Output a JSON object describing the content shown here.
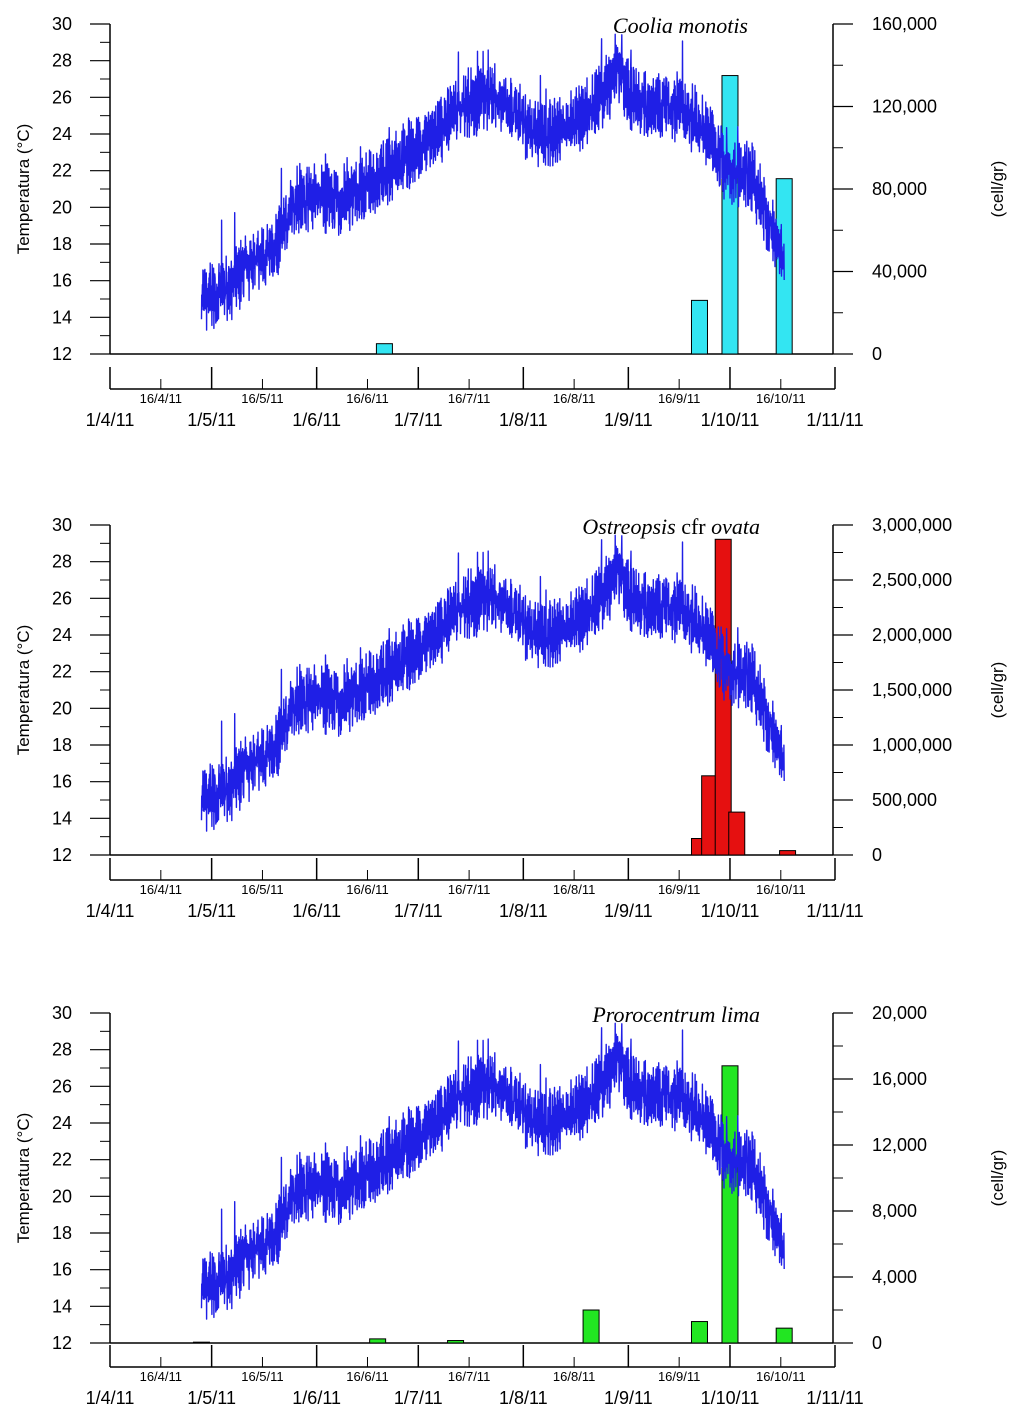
{
  "chart_data": [
    {
      "type": "bar+line",
      "title_parts": [
        {
          "text": "Coolia monotis",
          "italic": true
        }
      ],
      "ylabel_left": "Temperatura (°C)",
      "ylabel_right": "(cell/gr)",
      "left_ylim": [
        12,
        30
      ],
      "left_yticks": [
        "12",
        "14",
        "16",
        "18",
        "20",
        "22",
        "24",
        "26",
        "28",
        "30"
      ],
      "right_ylim": [
        0,
        160000
      ],
      "right_yticks": [
        "0",
        "40,000",
        "80,000",
        "120,000",
        "160,000"
      ],
      "x_major_labels": [
        "1/4/11",
        "1/5/11",
        "1/6/11",
        "1/7/11",
        "1/8/11",
        "1/9/11",
        "1/10/11",
        "1/11/11"
      ],
      "x_minor_labels": [
        "16/4/11",
        "16/5/11",
        "16/6/11",
        "16/7/11",
        "16/8/11",
        "16/9/11",
        "16/10/11"
      ],
      "bar_color": "#33e5f2",
      "line_color": "#1f1fe6",
      "bars": [
        {
          "date": "2011-06-21",
          "value": 5000
        },
        {
          "date": "2011-09-22",
          "value": 26000
        },
        {
          "date": "2011-10-01",
          "value": 135000
        },
        {
          "date": "2011-10-17",
          "value": 85000
        }
      ],
      "temperature_trend": [
        {
          "date": "2011-04-28",
          "value": 15.0
        },
        {
          "date": "2011-05-05",
          "value": 15.5
        },
        {
          "date": "2011-05-12",
          "value": 16.8
        },
        {
          "date": "2011-05-19",
          "value": 17.5
        },
        {
          "date": "2011-05-26",
          "value": 20.5
        },
        {
          "date": "2011-06-01",
          "value": 20.6
        },
        {
          "date": "2011-06-08",
          "value": 20.3
        },
        {
          "date": "2011-06-15",
          "value": 21.0
        },
        {
          "date": "2011-06-22",
          "value": 22.0
        },
        {
          "date": "2011-06-29",
          "value": 23.0
        },
        {
          "date": "2011-07-06",
          "value": 24.0
        },
        {
          "date": "2011-07-13",
          "value": 25.5
        },
        {
          "date": "2011-07-20",
          "value": 26.0
        },
        {
          "date": "2011-07-27",
          "value": 25.8
        },
        {
          "date": "2011-08-03",
          "value": 24.0
        },
        {
          "date": "2011-08-10",
          "value": 24.0
        },
        {
          "date": "2011-08-17",
          "value": 24.8
        },
        {
          "date": "2011-08-24",
          "value": 26.0
        },
        {
          "date": "2011-08-29",
          "value": 27.5
        },
        {
          "date": "2011-09-02",
          "value": 25.8
        },
        {
          "date": "2011-09-09",
          "value": 25.5
        },
        {
          "date": "2011-09-16",
          "value": 25.5
        },
        {
          "date": "2011-09-23",
          "value": 24.5
        },
        {
          "date": "2011-09-30",
          "value": 22.0
        },
        {
          "date": "2011-10-07",
          "value": 21.8
        },
        {
          "date": "2011-10-12",
          "value": 19.5
        },
        {
          "date": "2011-10-17",
          "value": 17.0
        }
      ]
    },
    {
      "type": "bar+line",
      "title_parts": [
        {
          "text": "Ostreopsis",
          "italic": true
        },
        {
          "text": " cfr ",
          "italic": false
        },
        {
          "text": "ovata",
          "italic": true
        }
      ],
      "ylabel_left": "Temperatura (°C)",
      "ylabel_right": "(cell/gr)",
      "left_ylim": [
        12,
        30
      ],
      "left_yticks": [
        "12",
        "14",
        "16",
        "18",
        "20",
        "22",
        "24",
        "26",
        "28",
        "30"
      ],
      "right_ylim": [
        0,
        3000000
      ],
      "right_yticks": [
        "0",
        "500,000",
        "1,000,000",
        "1,500,000",
        "2,000,000",
        "2,500,000",
        "3,000,000"
      ],
      "x_major_labels": [
        "1/4/11",
        "1/5/11",
        "1/6/11",
        "1/7/11",
        "1/8/11",
        "1/9/11",
        "1/10/11",
        "1/11/11"
      ],
      "x_minor_labels": [
        "16/4/11",
        "16/5/11",
        "16/6/11",
        "16/7/11",
        "16/8/11",
        "16/9/11",
        "16/10/11"
      ],
      "bar_color": "#e51010",
      "line_color": "#1f1fe6",
      "bars": [
        {
          "date": "2011-09-22",
          "value": 150000
        },
        {
          "date": "2011-09-25",
          "value": 720000
        },
        {
          "date": "2011-09-29",
          "value": 2870000
        },
        {
          "date": "2011-10-03",
          "value": 390000
        },
        {
          "date": "2011-10-18",
          "value": 40000
        }
      ],
      "temperature_trend": [
        {
          "date": "2011-04-28",
          "value": 15.0
        },
        {
          "date": "2011-05-05",
          "value": 15.5
        },
        {
          "date": "2011-05-12",
          "value": 16.8
        },
        {
          "date": "2011-05-19",
          "value": 17.5
        },
        {
          "date": "2011-05-26",
          "value": 20.5
        },
        {
          "date": "2011-06-01",
          "value": 20.6
        },
        {
          "date": "2011-06-08",
          "value": 20.3
        },
        {
          "date": "2011-06-15",
          "value": 21.0
        },
        {
          "date": "2011-06-22",
          "value": 22.0
        },
        {
          "date": "2011-06-29",
          "value": 23.0
        },
        {
          "date": "2011-07-06",
          "value": 24.0
        },
        {
          "date": "2011-07-13",
          "value": 25.5
        },
        {
          "date": "2011-07-20",
          "value": 26.0
        },
        {
          "date": "2011-07-27",
          "value": 25.8
        },
        {
          "date": "2011-08-03",
          "value": 24.0
        },
        {
          "date": "2011-08-10",
          "value": 24.0
        },
        {
          "date": "2011-08-17",
          "value": 24.8
        },
        {
          "date": "2011-08-24",
          "value": 26.0
        },
        {
          "date": "2011-08-29",
          "value": 27.5
        },
        {
          "date": "2011-09-02",
          "value": 25.8
        },
        {
          "date": "2011-09-09",
          "value": 25.5
        },
        {
          "date": "2011-09-16",
          "value": 25.5
        },
        {
          "date": "2011-09-23",
          "value": 24.5
        },
        {
          "date": "2011-09-30",
          "value": 22.0
        },
        {
          "date": "2011-10-07",
          "value": 21.8
        },
        {
          "date": "2011-10-12",
          "value": 19.5
        },
        {
          "date": "2011-10-17",
          "value": 17.0
        }
      ]
    },
    {
      "type": "bar+line",
      "title_parts": [
        {
          "text": "Prorocentrum lima",
          "italic": true
        }
      ],
      "ylabel_left": "Temperatura (°C)",
      "ylabel_right": "(cell/gr)",
      "left_ylim": [
        12,
        30
      ],
      "left_yticks": [
        "12",
        "14",
        "16",
        "18",
        "20",
        "22",
        "24",
        "26",
        "28",
        "30"
      ],
      "right_ylim": [
        0,
        20000
      ],
      "right_yticks": [
        "0",
        "4,000",
        "8,000",
        "12,000",
        "16,000",
        "20,000"
      ],
      "x_major_labels": [
        "1/4/11",
        "1/5/11",
        "1/6/11",
        "1/7/11",
        "1/8/11",
        "1/9/11",
        "1/10/11",
        "1/11/11"
      ],
      "x_minor_labels": [
        "16/4/11",
        "16/5/11",
        "16/6/11",
        "16/7/11",
        "16/8/11",
        "16/9/11",
        "16/10/11"
      ],
      "bar_color": "#22e622",
      "line_color": "#1f1fe6",
      "bars": [
        {
          "date": "2011-04-28",
          "value": 50
        },
        {
          "date": "2011-06-19",
          "value": 250
        },
        {
          "date": "2011-07-12",
          "value": 150
        },
        {
          "date": "2011-08-21",
          "value": 2000
        },
        {
          "date": "2011-09-22",
          "value": 1300
        },
        {
          "date": "2011-10-01",
          "value": 16800
        },
        {
          "date": "2011-10-17",
          "value": 900
        }
      ],
      "temperature_trend": [
        {
          "date": "2011-04-28",
          "value": 15.0
        },
        {
          "date": "2011-05-05",
          "value": 15.5
        },
        {
          "date": "2011-05-12",
          "value": 16.8
        },
        {
          "date": "2011-05-19",
          "value": 17.5
        },
        {
          "date": "2011-05-26",
          "value": 20.5
        },
        {
          "date": "2011-06-01",
          "value": 20.6
        },
        {
          "date": "2011-06-08",
          "value": 20.3
        },
        {
          "date": "2011-06-15",
          "value": 21.0
        },
        {
          "date": "2011-06-22",
          "value": 22.0
        },
        {
          "date": "2011-06-29",
          "value": 23.0
        },
        {
          "date": "2011-07-06",
          "value": 24.0
        },
        {
          "date": "2011-07-13",
          "value": 25.5
        },
        {
          "date": "2011-07-20",
          "value": 26.0
        },
        {
          "date": "2011-07-27",
          "value": 25.8
        },
        {
          "date": "2011-08-03",
          "value": 24.0
        },
        {
          "date": "2011-08-10",
          "value": 24.0
        },
        {
          "date": "2011-08-17",
          "value": 24.8
        },
        {
          "date": "2011-08-24",
          "value": 26.0
        },
        {
          "date": "2011-08-29",
          "value": 27.5
        },
        {
          "date": "2011-09-02",
          "value": 25.8
        },
        {
          "date": "2011-09-09",
          "value": 25.5
        },
        {
          "date": "2011-09-16",
          "value": 25.5
        },
        {
          "date": "2011-09-23",
          "value": 24.5
        },
        {
          "date": "2011-09-30",
          "value": 22.0
        },
        {
          "date": "2011-10-07",
          "value": 21.8
        },
        {
          "date": "2011-10-12",
          "value": 19.5
        },
        {
          "date": "2011-10-17",
          "value": 17.0
        }
      ]
    }
  ]
}
